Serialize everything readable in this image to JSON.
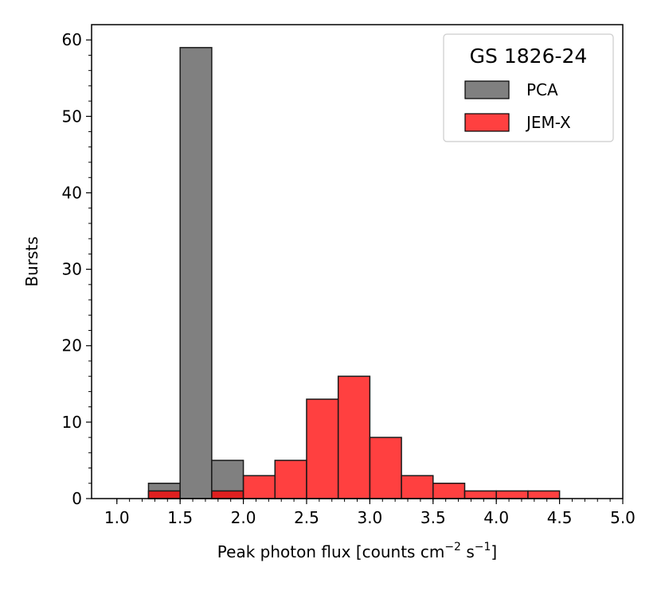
{
  "chart_data": {
    "type": "bar",
    "bin_width": 0.25,
    "xlim": [
      0.8,
      5.0
    ],
    "ylim": [
      0,
      62
    ],
    "xticks": [
      "1.0",
      "1.5",
      "2.0",
      "2.5",
      "3.0",
      "3.5",
      "4.0",
      "4.5",
      "5.0"
    ],
    "xtick_values": [
      1.0,
      1.5,
      2.0,
      2.5,
      3.0,
      3.5,
      4.0,
      4.5,
      5.0
    ],
    "yticks": [
      "0",
      "10",
      "20",
      "30",
      "40",
      "50",
      "60"
    ],
    "ytick_values": [
      0,
      10,
      20,
      30,
      40,
      50,
      60
    ],
    "xlabel_main": "Peak photon flux [counts cm",
    "xlabel_sup1": "−2",
    "xlabel_mid": " s",
    "xlabel_sup2": "−1",
    "xlabel_end": "]",
    "ylabel": "Bursts",
    "legend": {
      "title": "GS 1826-24",
      "position": "top-right"
    },
    "series": [
      {
        "name": "PCA",
        "color": "#808080",
        "bin_starts": [
          1.0,
          1.25,
          1.5,
          1.75,
          2.0,
          2.25,
          2.5,
          2.75,
          3.0,
          3.25,
          3.5,
          3.75,
          4.0,
          4.25,
          4.5,
          4.75
        ],
        "values": [
          0,
          2,
          59,
          5,
          0,
          0,
          0,
          0,
          0,
          0,
          0,
          0,
          0,
          0,
          0,
          0
        ]
      },
      {
        "name": "JEM-X",
        "color": "#ff0000",
        "bin_starts": [
          1.0,
          1.25,
          1.5,
          1.75,
          2.0,
          2.25,
          2.5,
          2.75,
          3.0,
          3.25,
          3.5,
          3.75,
          4.0,
          4.25,
          4.5,
          4.75
        ],
        "values": [
          0,
          1,
          0,
          1,
          3,
          5,
          13,
          16,
          8,
          3,
          2,
          1,
          1,
          1,
          0,
          0
        ]
      }
    ]
  }
}
